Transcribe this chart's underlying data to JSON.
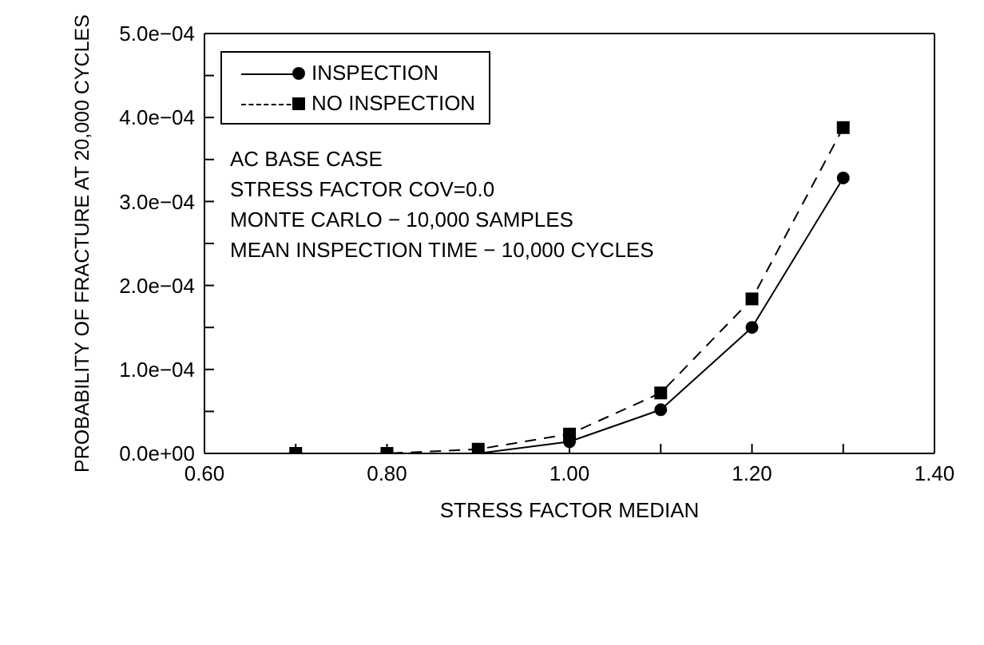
{
  "chart_data": {
    "type": "line",
    "xlabel": "STRESS FACTOR MEDIAN",
    "ylabel": "PROBABILITY OF FRACTURE AT 20,000 CYCLES",
    "x": [
      0.7,
      0.8,
      0.9,
      1.0,
      1.1,
      1.2,
      1.3
    ],
    "series": [
      {
        "name": "INSPECTION",
        "color": "#000000",
        "values": [
          0,
          0,
          0,
          1.4e-05,
          5.2e-05,
          0.00015,
          0.000328
        ],
        "marker": "circle",
        "line_style": "solid"
      },
      {
        "name": "NO INSPECTION",
        "color": "#000000",
        "values": [
          0,
          0,
          5e-06,
          2.3e-05,
          7.2e-05,
          0.000184,
          0.000388
        ],
        "marker": "square",
        "line_style": "dashed"
      }
    ],
    "xlim": [
      0.6,
      1.4
    ],
    "xticks": [
      {
        "value": 0.6,
        "label": "0.60"
      },
      {
        "value": 0.7,
        "label": null
      },
      {
        "value": 0.8,
        "label": "0.80"
      },
      {
        "value": 0.9,
        "label": null
      },
      {
        "value": 1.0,
        "label": "1.00"
      },
      {
        "value": 1.1,
        "label": null
      },
      {
        "value": 1.2,
        "label": "1.20"
      },
      {
        "value": 1.3,
        "label": null
      },
      {
        "value": 1.4,
        "label": "1.40"
      }
    ],
    "ylim": [
      0,
      0.0005
    ],
    "yticks": [
      {
        "value": 0,
        "label": "0.0e+00"
      },
      {
        "value": 5e-05,
        "label": null
      },
      {
        "value": 0.0001,
        "label": "1.0e−04"
      },
      {
        "value": 0.00015,
        "label": null
      },
      {
        "value": 0.0002,
        "label": "2.0e−04"
      },
      {
        "value": 0.00025,
        "label": null
      },
      {
        "value": 0.0003,
        "label": "3.0e−04"
      },
      {
        "value": 0.00035,
        "label": null
      },
      {
        "value": 0.0004,
        "label": "4.0e−04"
      },
      {
        "value": 0.00045,
        "label": null
      },
      {
        "value": 0.0005,
        "label": "5.0e−04"
      }
    ],
    "grid": false,
    "legend": "top left",
    "annotations": [
      "AC BASE CASE",
      "STRESS FACTOR COV=0.0",
      "MONTE CARLO − 10,000 SAMPLES",
      "MEAN INSPECTION TIME − 10,000 CYCLES"
    ]
  }
}
